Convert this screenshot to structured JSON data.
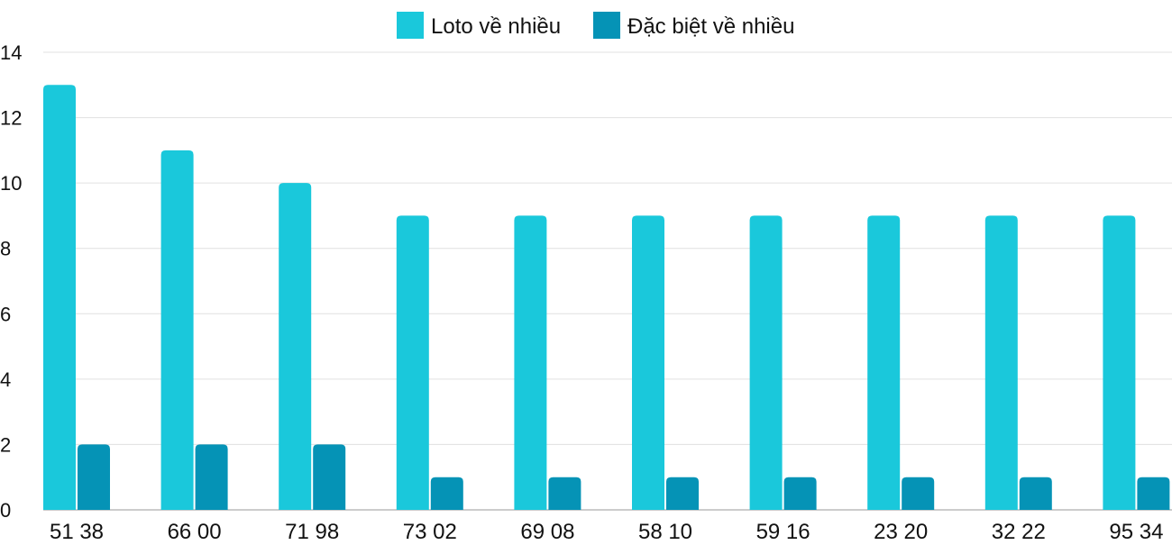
{
  "chart_data": {
    "type": "bar",
    "title": "",
    "xlabel": "",
    "ylabel": "",
    "ylim": [
      0,
      14
    ],
    "yticks": [
      0,
      2,
      4,
      6,
      8,
      10,
      12,
      14
    ],
    "grid": true,
    "legend_position": "top",
    "categories": [
      "51 38",
      "66 00",
      "71 98",
      "73 02",
      "69 08",
      "58 10",
      "59 16",
      "23 20",
      "32 22",
      "95 34"
    ],
    "series": [
      {
        "name": "Loto về nhiều",
        "color": "#1ac8db",
        "values": [
          13,
          11,
          10,
          9,
          9,
          9,
          9,
          9,
          9,
          9
        ]
      },
      {
        "name": "Đặc biệt về nhiều",
        "color": "#0593b6",
        "values": [
          2,
          2,
          2,
          1,
          1,
          1,
          1,
          1,
          1,
          1
        ]
      }
    ]
  }
}
